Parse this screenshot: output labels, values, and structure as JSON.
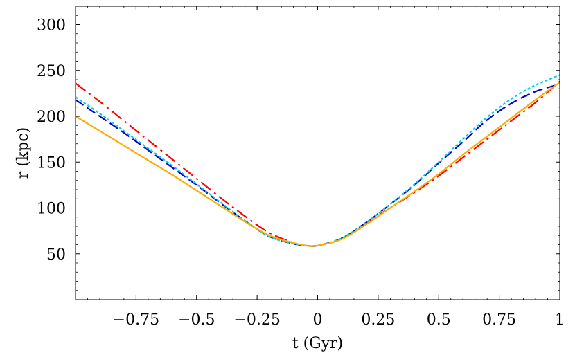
{
  "chart_data": {
    "type": "line",
    "xlabel": "t (Gyr)",
    "ylabel": "r (kpc)",
    "xlim": [
      -1,
      1
    ],
    "ylim": [
      0,
      320
    ],
    "grid": false,
    "x_ticks": [
      {
        "value": -0.75,
        "label": "−0.75"
      },
      {
        "value": -0.5,
        "label": "−0.5"
      },
      {
        "value": -0.25,
        "label": "−0.25"
      },
      {
        "value": 0,
        "label": "0"
      },
      {
        "value": 0.25,
        "label": "0.25"
      },
      {
        "value": 0.5,
        "label": "0.5"
      },
      {
        "value": 0.75,
        "label": "0.75"
      },
      {
        "value": 1,
        "label": "1"
      }
    ],
    "y_ticks": [
      {
        "value": 50,
        "label": "50"
      },
      {
        "value": 100,
        "label": "100"
      },
      {
        "value": 150,
        "label": "150"
      },
      {
        "value": 200,
        "label": "200"
      },
      {
        "value": 250,
        "label": "250"
      },
      {
        "value": 300,
        "label": "300"
      }
    ],
    "series": [
      {
        "color": "#ff0000",
        "style": "dash-dot",
        "x": [
          -1,
          -0.9,
          -0.8,
          -0.7,
          -0.6,
          -0.5,
          -0.4,
          -0.3,
          -0.2,
          -0.1,
          -0.05,
          0,
          0.1,
          0.2,
          0.3,
          0.4,
          0.5,
          0.6,
          0.7,
          0.8,
          0.9,
          1
        ],
        "y": [
          236,
          216,
          195,
          174,
          153,
          132,
          111,
          91,
          73,
          62,
          59,
          59,
          67,
          84,
          100,
          117,
          135,
          155,
          175,
          195,
          215,
          238
        ]
      },
      {
        "color": "#0000cc",
        "style": "dashed",
        "x": [
          -1,
          -0.9,
          -0.8,
          -0.7,
          -0.6,
          -0.5,
          -0.4,
          -0.3,
          -0.2,
          -0.1,
          -0.05,
          0,
          0.1,
          0.2,
          0.3,
          0.4,
          0.5,
          0.6,
          0.7,
          0.8,
          0.9,
          1
        ],
        "y": [
          218,
          200,
          182,
          163,
          144,
          125,
          105,
          86,
          69,
          61,
          59,
          59,
          67,
          84,
          104,
          125,
          149,
          172,
          196,
          214,
          227,
          235
        ]
      },
      {
        "color": "#00ccee",
        "style": "dotted",
        "x": [
          -1,
          -0.9,
          -0.8,
          -0.7,
          -0.6,
          -0.5,
          -0.4,
          -0.3,
          -0.2,
          -0.1,
          -0.05,
          0,
          0.1,
          0.2,
          0.3,
          0.4,
          0.5,
          0.6,
          0.7,
          0.8,
          0.9,
          1
        ],
        "y": [
          221,
          203,
          184,
          165,
          146,
          126,
          106,
          86,
          69,
          61,
          59,
          59,
          67,
          84,
          104,
          126,
          150,
          175,
          199,
          219,
          234,
          245
        ]
      },
      {
        "color": "#ffaa00",
        "style": "solid",
        "x": [
          -1,
          -0.9,
          -0.8,
          -0.7,
          -0.6,
          -0.5,
          -0.4,
          -0.3,
          -0.2,
          -0.1,
          -0.05,
          0,
          0.1,
          0.2,
          0.3,
          0.4,
          0.5,
          0.6,
          0.7,
          0.8,
          0.9,
          1
        ],
        "y": [
          200,
          184,
          168,
          152,
          136,
          119,
          102,
          85,
          70,
          62,
          59,
          59,
          66,
          82,
          100,
          118,
          137,
          158,
          178,
          198,
          218,
          237
        ]
      }
    ]
  }
}
